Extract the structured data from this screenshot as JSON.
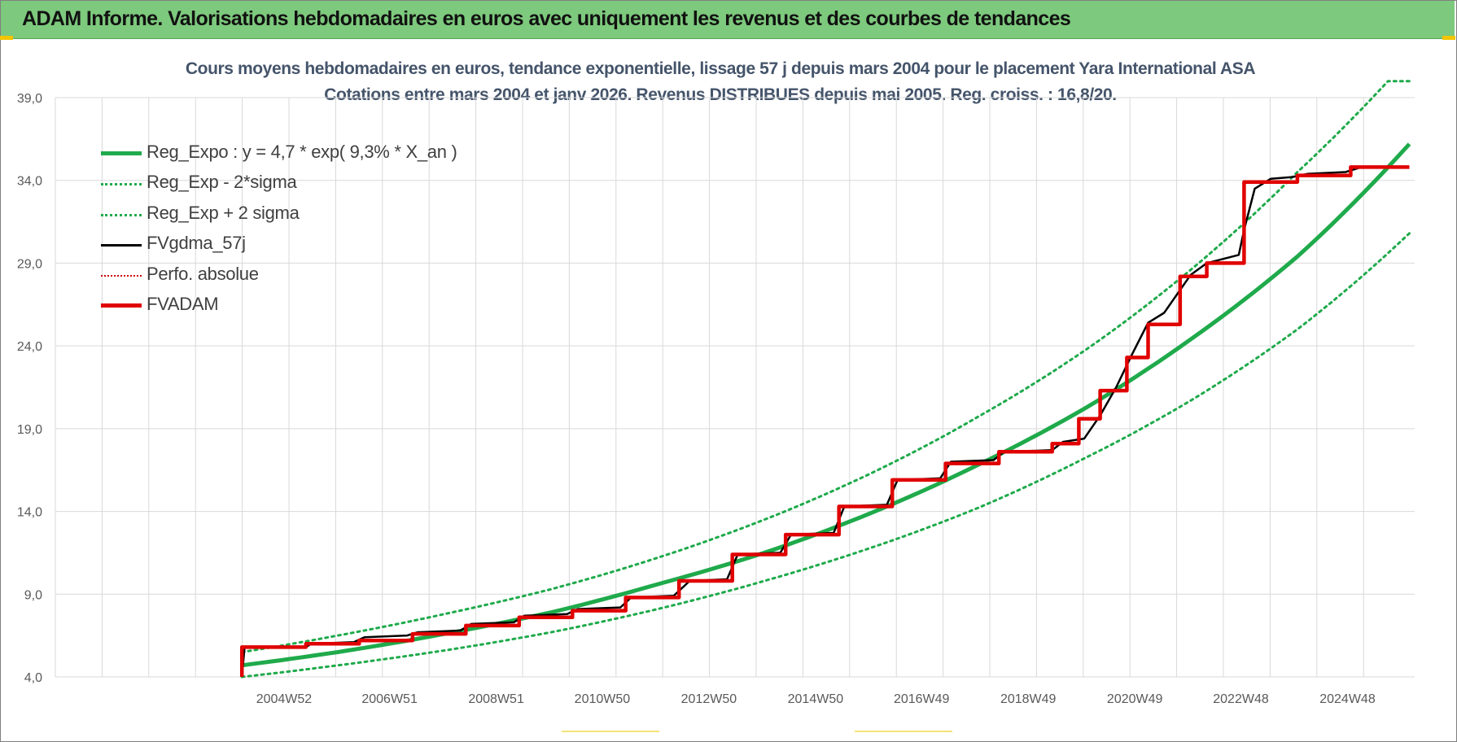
{
  "banner": {
    "title": "ADAM Informe. Valorisations hebdomadaires en euros avec uniquement les revenus et des courbes de tendances"
  },
  "colors": {
    "banner_bg": "#7dc97d",
    "reg_expo": "#1faa4b",
    "sigma": "#1faa4b",
    "fvgdma": "#000000",
    "perfo": "#cc0000",
    "fvadam": "#e00000",
    "title": "#44546a"
  },
  "chart_data": {
    "type": "line",
    "title": "Cours moyens hebdomadaires en euros, tendance exponentielle, lissage 57 j depuis mars 2004 pour le placement Yara International ASA",
    "subtitle": "Cotations entre mars 2004 et janv 2026. Revenus DISTRIBUES depuis mai 2005. Reg. croiss. : 16,8/20.",
    "xlabel": "",
    "ylabel": "",
    "ylim": [
      4,
      39
    ],
    "xlim": [
      2000.7,
      2026.2
    ],
    "y_ticks": [
      "4,0",
      "9,0",
      "14,0",
      "19,0",
      "24,0",
      "29,0",
      "34,0",
      "39,0"
    ],
    "x_tick_labels": [
      "2004W52",
      "2006W51",
      "2008W51",
      "2010W50",
      "2012W50",
      "2014W50",
      "2016W49",
      "2018W49",
      "2020W49",
      "2022W48",
      "2024W48"
    ],
    "x_tick_years": [
      2004.99,
      2006.97,
      2008.97,
      2010.96,
      2012.96,
      2014.96,
      2016.95,
      2018.95,
      2020.95,
      2022.94,
      2024.94
    ],
    "grid": true,
    "legend_position": "top-left",
    "series": [
      {
        "name": "Reg_Expo : y = 4,7 * exp( 9,3% *  X_an )",
        "style": "solid-thick",
        "x": [
          2004.2,
          2006,
          2008,
          2010,
          2012,
          2014,
          2016,
          2018,
          2020,
          2022,
          2024,
          2026.1
        ],
        "y": [
          4.7,
          5.5,
          6.6,
          7.9,
          9.6,
          11.5,
          13.9,
          16.8,
          20.2,
          24.4,
          29.4,
          36.2
        ]
      },
      {
        "name": "Reg_Exp - 2*sigma",
        "style": "dotted",
        "x": [
          2004.2,
          2006,
          2008,
          2010,
          2012,
          2014,
          2016,
          2018,
          2020,
          2022,
          2024,
          2026.1
        ],
        "y": [
          4.0,
          4.7,
          5.6,
          6.7,
          8.1,
          9.8,
          11.8,
          14.2,
          17.2,
          20.7,
          25.0,
          30.8
        ]
      },
      {
        "name": "Reg_Exp + 2 sigma",
        "style": "dotted",
        "x": [
          2004.2,
          2006,
          2008,
          2010,
          2012,
          2014,
          2016,
          2018,
          2020,
          2022,
          2024,
          2025.7,
          2026.1
        ],
        "y": [
          5.5,
          6.5,
          7.8,
          9.3,
          11.2,
          13.5,
          16.3,
          19.7,
          23.7,
          28.6,
          34.5,
          40.0,
          40.0
        ]
      },
      {
        "name": "FVgdma_57j",
        "style": "solid-thin",
        "x": [
          2004.2,
          2004.25,
          2005.4,
          2005.5,
          2006.3,
          2006.5,
          2007.3,
          2007.5,
          2008.3,
          2008.5,
          2009.3,
          2009.5,
          2010.3,
          2010.5,
          2011.3,
          2011.5,
          2012.3,
          2012.6,
          2013.3,
          2013.5,
          2014.3,
          2014.5,
          2015.3,
          2015.5,
          2016.3,
          2016.5,
          2017.3,
          2017.5,
          2018.3,
          2018.5,
          2019.4,
          2019.6,
          2020.0,
          2020.3,
          2020.6,
          2020.9,
          2021.2,
          2021.5,
          2022.0,
          2022.3,
          2022.9,
          2023.0,
          2023.2,
          2023.5,
          2023.9,
          2024.2,
          2024.9,
          2025.2,
          2026.1
        ],
        "y": [
          4.0,
          5.8,
          5.8,
          6.0,
          6.1,
          6.4,
          6.5,
          6.7,
          6.8,
          7.2,
          7.3,
          7.7,
          7.8,
          8.1,
          8.2,
          8.8,
          8.9,
          9.8,
          9.9,
          11.4,
          11.5,
          12.6,
          12.7,
          14.3,
          14.4,
          15.9,
          16.0,
          17.0,
          17.1,
          17.6,
          17.7,
          18.2,
          18.4,
          19.8,
          21.5,
          23.5,
          25.4,
          26.0,
          28.3,
          29.0,
          29.5,
          31.0,
          33.5,
          34.1,
          34.2,
          34.4,
          34.5,
          34.8,
          34.8
        ]
      },
      {
        "name": "Perfo. absolue",
        "style": "dotted-thin",
        "x": [],
        "y": []
      },
      {
        "name": "FVADAM",
        "style": "solid-step",
        "x": [
          2004.2,
          2004.2,
          2005.4,
          2005.4,
          2006.4,
          2006.4,
          2007.4,
          2007.4,
          2008.4,
          2008.4,
          2009.4,
          2009.4,
          2010.4,
          2010.4,
          2011.4,
          2011.4,
          2012.4,
          2012.4,
          2013.4,
          2013.4,
          2014.4,
          2014.4,
          2015.4,
          2015.4,
          2016.4,
          2016.4,
          2017.4,
          2017.4,
          2018.4,
          2018.4,
          2019.4,
          2019.4,
          2019.9,
          2019.9,
          2020.3,
          2020.3,
          2020.8,
          2020.8,
          2021.2,
          2021.2,
          2021.8,
          2021.8,
          2022.3,
          2022.3,
          2023.0,
          2023.0,
          2024.0,
          2024.0,
          2025.0,
          2025.0,
          2026.1
        ],
        "y": [
          4.0,
          5.8,
          5.8,
          6.0,
          6.0,
          6.2,
          6.2,
          6.6,
          6.6,
          7.1,
          7.1,
          7.6,
          7.6,
          8.0,
          8.0,
          8.8,
          8.8,
          9.8,
          9.8,
          11.4,
          11.4,
          12.6,
          12.6,
          14.3,
          14.3,
          15.9,
          15.9,
          16.9,
          16.9,
          17.6,
          17.6,
          18.1,
          18.1,
          19.6,
          19.6,
          21.3,
          21.3,
          23.3,
          23.3,
          25.3,
          25.3,
          28.2,
          28.2,
          29.0,
          29.0,
          33.9,
          33.9,
          34.3,
          34.3,
          34.8,
          34.8
        ]
      }
    ]
  }
}
